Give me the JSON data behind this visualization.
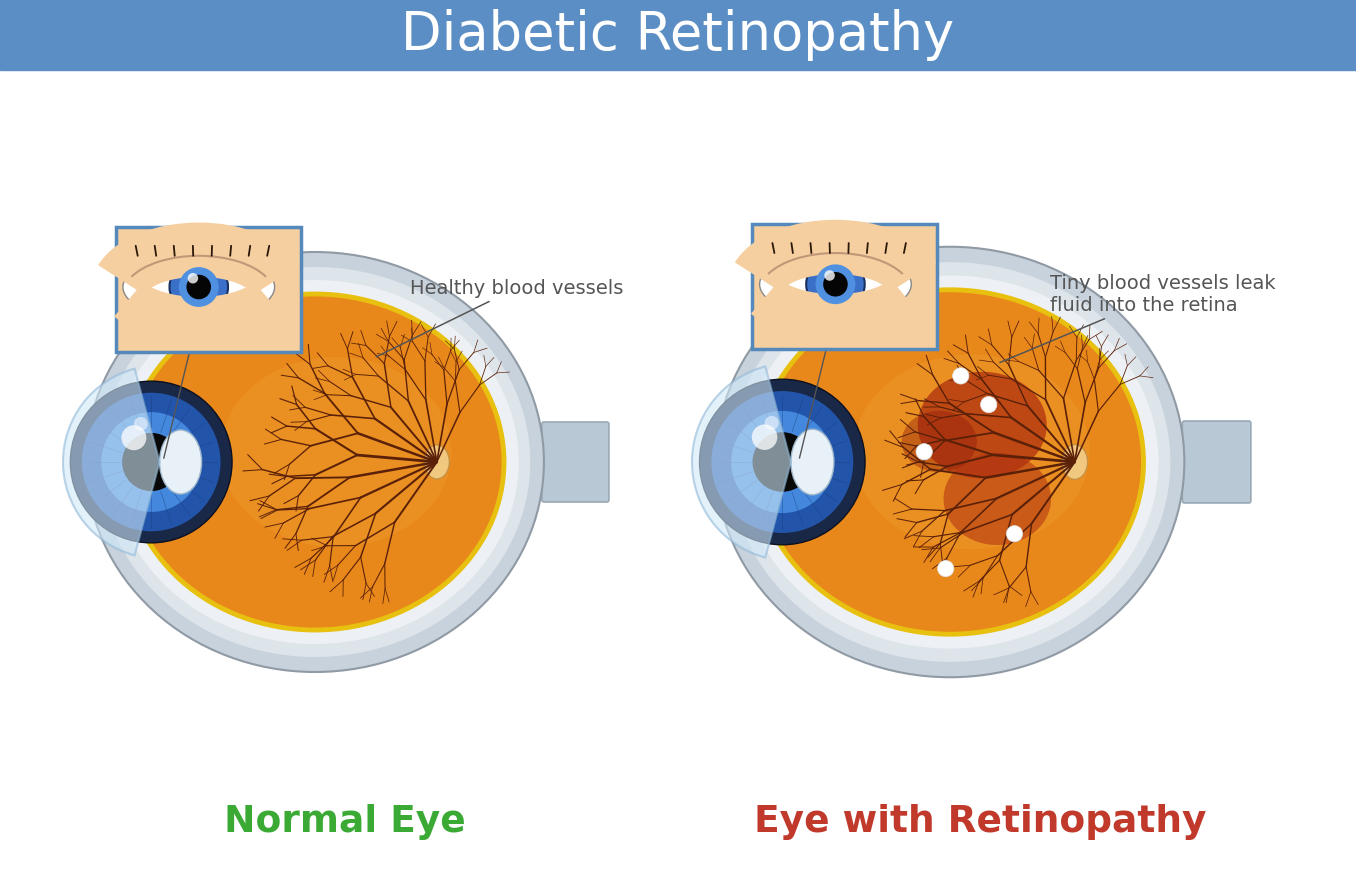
{
  "title": "Diabetic Retinopathy",
  "title_bg_color": "#5b8ec4",
  "title_text_color": "white",
  "bg_color": "white",
  "label_normal": "Normal Eye",
  "label_normal_color": "#3aaa35",
  "label_retino": "Eye with Retinopathy",
  "label_retino_color": "#c0392b",
  "annotation_normal": "Healthy blood vessels",
  "annotation_retino": "Tiny blood vessels leak\nfluid into the retina",
  "annotation_color": "#555555",
  "eye_bg_color": "#f5cfa0",
  "sclera_outer_color": "#c8d2dc",
  "sclera_mid_color": "#dde4ea",
  "sclera_inner_color": "#edf1f5",
  "retina_orange": "#e8871a",
  "retina_light": "#f0a030",
  "vessel_color": "#5a2008",
  "iris_blue_outer": "#2255aa",
  "iris_blue_inner": "#4488dd",
  "pupil_color": "#080808",
  "optic_disc_color": "#e8a060",
  "damage_red": "#b03010",
  "damage_dark": "#8a1808",
  "nerve_color": "#b8c8d4",
  "nerve_edge": "#98a8b4",
  "yellow_ring": "#e8c010",
  "inset_border": "#5588bb",
  "skin_color": "#f5cfa0"
}
